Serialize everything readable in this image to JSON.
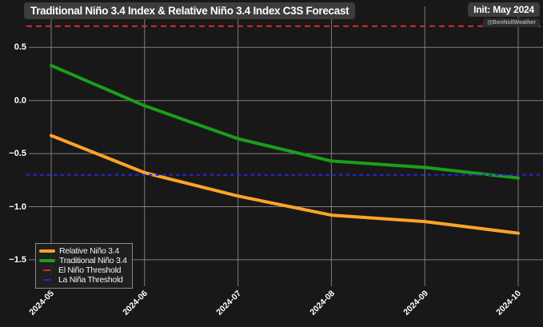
{
  "header": {
    "title": "Traditional Niño 3.4 Index & Relative Niño 3.4 Index C3S Forecast",
    "init_label": "Init: May 2024",
    "handle": "@BenNollWeather"
  },
  "colors": {
    "background": "#181818",
    "gridline": "#8f8f8f",
    "text": "#ffffff",
    "title_box_bg": "#3c3c3c",
    "relative_orange": "#FFA428",
    "traditional_green": "#1B9E1B",
    "el_nino_red": "#D42B2B",
    "la_nina_blue": "#2626D9"
  },
  "chart_data": {
    "type": "line",
    "title": "Traditional Niño 3.4 Index & Relative Niño 3.4 Index C3S Forecast",
    "xlabel": "",
    "ylabel": "",
    "categories": [
      "2024-05",
      "2024-06",
      "2024-07",
      "2024-08",
      "2024-09",
      "2024-10"
    ],
    "series": [
      {
        "name": "Relative Niño 3.4",
        "color": "#FFA428",
        "data_name": "relative-nino-series-line",
        "values": [
          -0.33,
          -0.68,
          -0.9,
          -1.08,
          -1.14,
          -1.25
        ]
      },
      {
        "name": "Traditional Niño 3.4",
        "color": "#1B9E1B",
        "data_name": "traditional-nino-series-line",
        "values": [
          0.33,
          -0.05,
          -0.36,
          -0.57,
          -0.63,
          -0.73
        ]
      }
    ],
    "thresholds": [
      {
        "name": "El Niño Threshold",
        "color": "#D42B2B",
        "value": 0.7,
        "style": "dashed",
        "dash": "7 5",
        "data_name": "el-nino-threshold-line"
      },
      {
        "name": "La Niña Threshold",
        "color": "#2626D9",
        "value": -0.7,
        "style": "dashed",
        "dash": "4.5 4",
        "data_name": "la-nina-threshold-line"
      }
    ],
    "yticks": [
      0.5,
      0.0,
      -0.5,
      -1.0,
      -1.5
    ],
    "ytick_labels": [
      "0.5",
      "0.0",
      "−0.5",
      "−1.0",
      "−1.5"
    ],
    "ylim": [
      -1.73,
      0.89
    ],
    "grid": true,
    "legend_position": "lower left"
  }
}
